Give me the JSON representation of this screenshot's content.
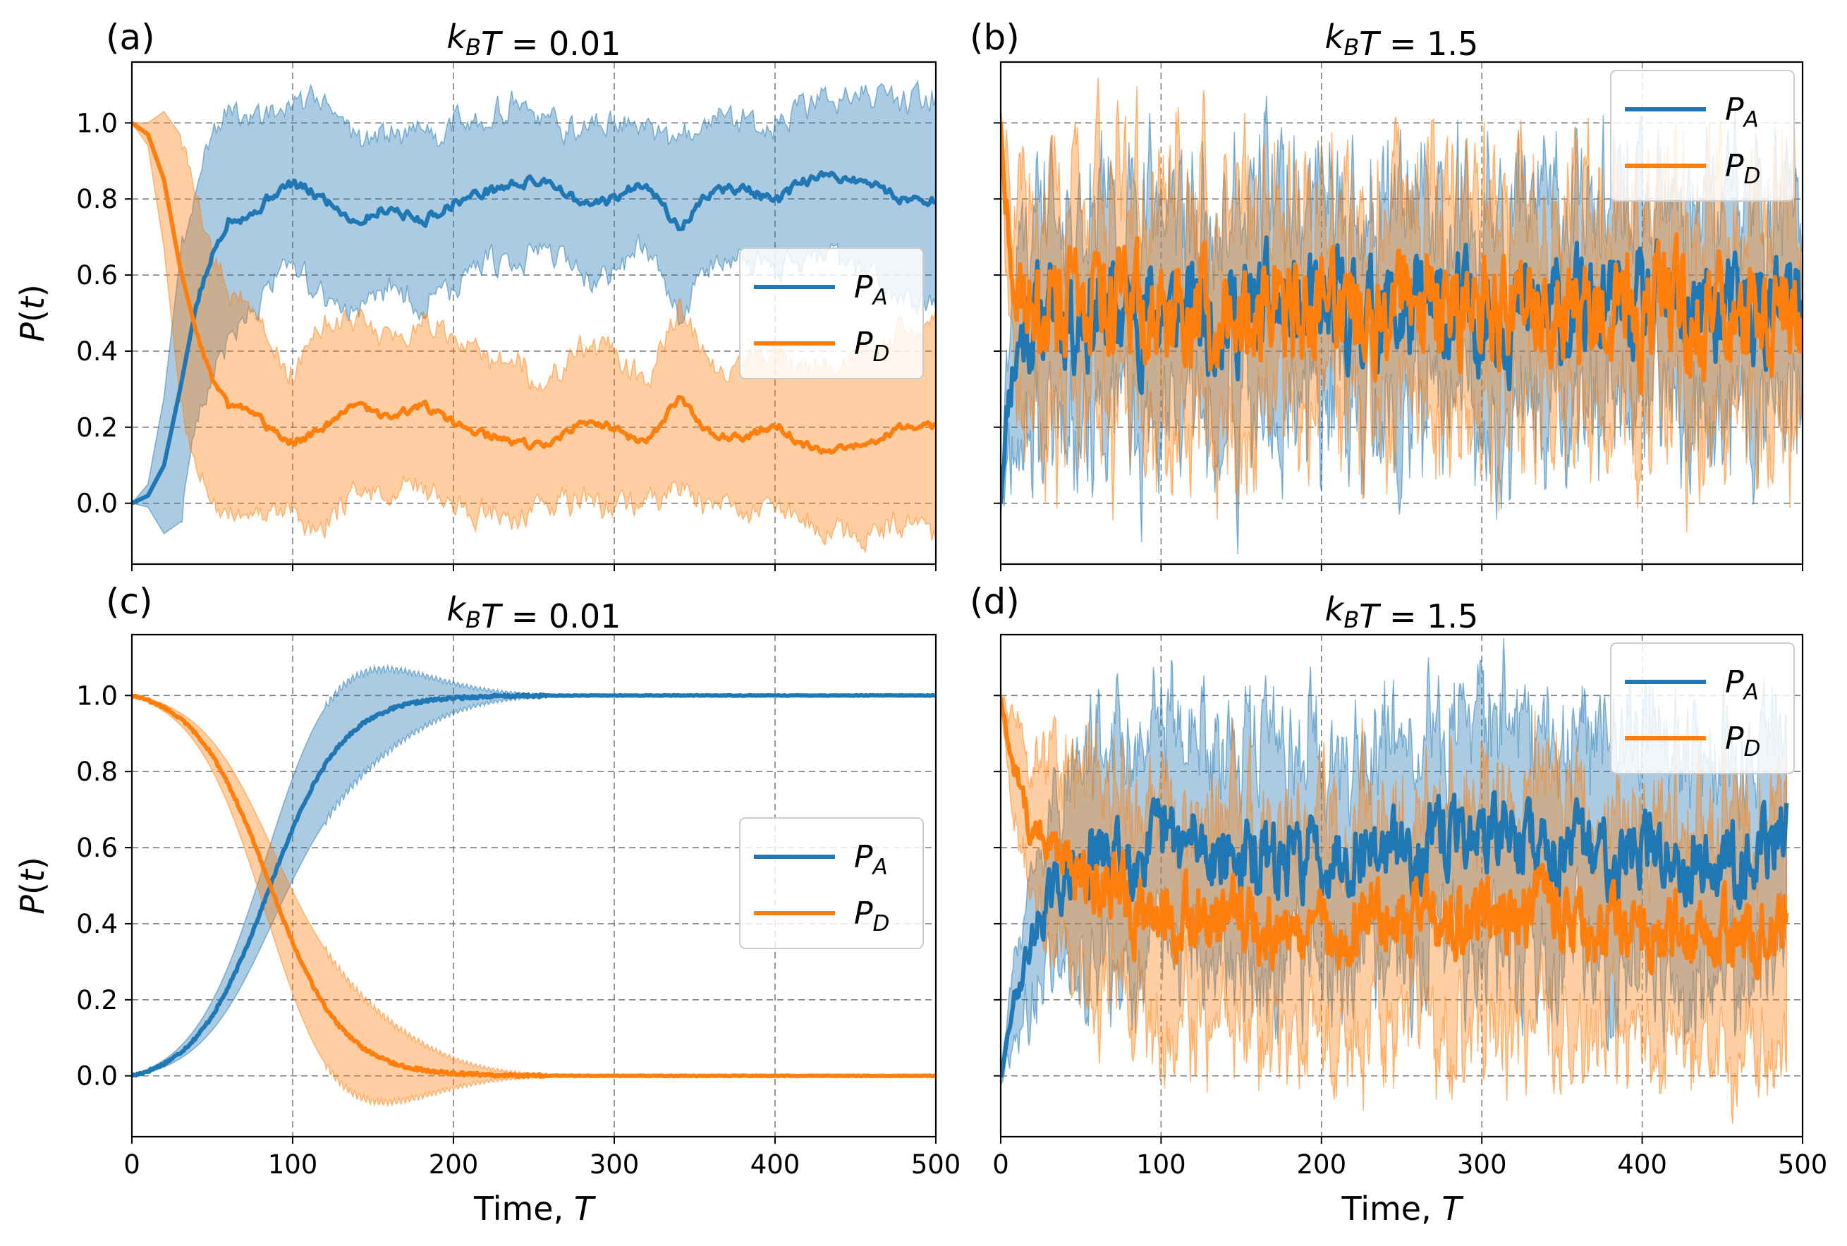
{
  "chart_data": [
    {
      "panel": "(a)",
      "type": "line",
      "title_var": "k",
      "title_sub": "B",
      "title_rest": "T = 0.01",
      "ylabel_main": "P(t)",
      "xlabel": "",
      "xlim": [
        0,
        500
      ],
      "ylim": [
        -0.16,
        1.16
      ],
      "yticks": [
        "0.0",
        "0.2",
        "0.4",
        "0.6",
        "0.8",
        "1.0"
      ],
      "xticks": [],
      "legend": "center-right",
      "series": [
        {
          "name": "P",
          "sub": "A",
          "color": "#1f77b4",
          "x": [
            0,
            10,
            20,
            30,
            40,
            50,
            60,
            75,
            90,
            100,
            120,
            140,
            160,
            180,
            200,
            220,
            240,
            260,
            280,
            300,
            320,
            340,
            360,
            380,
            400,
            420,
            440,
            460,
            480,
            500
          ],
          "values": [
            0.0,
            0.02,
            0.1,
            0.3,
            0.52,
            0.65,
            0.75,
            0.76,
            0.82,
            0.84,
            0.8,
            0.74,
            0.78,
            0.74,
            0.79,
            0.82,
            0.84,
            0.85,
            0.78,
            0.8,
            0.85,
            0.72,
            0.82,
            0.83,
            0.79,
            0.85,
            0.86,
            0.84,
            0.8,
            0.8
          ],
          "band": [
            0.0,
            0.03,
            0.18,
            0.35,
            0.32,
            0.33,
            0.3,
            0.25,
            0.2,
            0.18,
            0.27,
            0.22,
            0.2,
            0.22,
            0.22,
            0.2,
            0.2,
            0.16,
            0.2,
            0.2,
            0.16,
            0.24,
            0.2,
            0.18,
            0.2,
            0.2,
            0.22,
            0.24,
            0.26,
            0.28
          ]
        },
        {
          "name": "P",
          "sub": "D",
          "color": "#ff7f0e",
          "x": [
            0,
            10,
            20,
            30,
            40,
            50,
            60,
            75,
            90,
            100,
            120,
            140,
            160,
            180,
            200,
            220,
            240,
            260,
            280,
            300,
            320,
            340,
            360,
            380,
            400,
            420,
            440,
            460,
            480,
            500
          ],
          "values": [
            1.0,
            0.97,
            0.85,
            0.62,
            0.45,
            0.33,
            0.25,
            0.24,
            0.18,
            0.16,
            0.2,
            0.26,
            0.22,
            0.26,
            0.21,
            0.18,
            0.16,
            0.15,
            0.22,
            0.2,
            0.15,
            0.28,
            0.18,
            0.17,
            0.21,
            0.15,
            0.14,
            0.16,
            0.2,
            0.2
          ]
        },
        {
          "name": "band-D",
          "color": "#ff7f0e",
          "band": [
            0.0,
            0.03,
            0.18,
            0.35,
            0.32,
            0.33,
            0.3,
            0.25,
            0.2,
            0.18,
            0.27,
            0.22,
            0.2,
            0.22,
            0.22,
            0.2,
            0.2,
            0.16,
            0.2,
            0.2,
            0.16,
            0.24,
            0.2,
            0.18,
            0.2,
            0.2,
            0.22,
            0.24,
            0.26,
            0.28
          ]
        }
      ]
    },
    {
      "panel": "(b)",
      "type": "line",
      "title_var": "k",
      "title_sub": "B",
      "title_rest": "T = 1.5",
      "ylabel_main": "",
      "xlabel": "",
      "xlim": [
        0,
        500
      ],
      "ylim": [
        -0.16,
        1.16
      ],
      "yticks": [],
      "xticks": [],
      "legend": "top-right",
      "noise": {
        "tail_x": 500,
        "mean": 0.5,
        "line_amp": 0.07,
        "band_half": 0.28,
        "band_amp": 0.07,
        "seed": 11
      },
      "series": [
        {
          "name": "P",
          "sub": "A",
          "color": "#1f77b4",
          "start": 0.0,
          "relax": 6
        },
        {
          "name": "P",
          "sub": "D",
          "color": "#ff7f0e",
          "start": 1.0,
          "relax": 6
        }
      ]
    },
    {
      "panel": "(c)",
      "type": "line",
      "title_var": "k",
      "title_sub": "B",
      "title_rest": "T = 0.01",
      "ylabel_main": "P(t)",
      "xlabel_main": "Time, ",
      "xlabel_var": "T",
      "xlim": [
        0,
        500
      ],
      "ylim": [
        -0.16,
        1.16
      ],
      "yticks": [
        "0.0",
        "0.2",
        "0.4",
        "0.6",
        "0.8",
        "1.0"
      ],
      "xticks": [
        "0",
        "100",
        "200",
        "300",
        "400",
        "500"
      ],
      "legend": "center-right",
      "sigmoid": {
        "center": 85,
        "width": 23
      },
      "band_max": 0.15,
      "band_center": 120,
      "band_width": 60,
      "series": [
        {
          "name": "P",
          "sub": "A",
          "color": "#1f77b4",
          "rising": true
        },
        {
          "name": "P",
          "sub": "D",
          "color": "#ff7f0e",
          "rising": false
        }
      ]
    },
    {
      "panel": "(d)",
      "type": "line",
      "title_var": "k",
      "title_sub": "B",
      "title_rest": "T = 1.5",
      "ylabel_main": "",
      "xlabel_main": "Time, ",
      "xlabel_var": "T",
      "xlim": [
        0,
        500
      ],
      "ylim": [
        -0.16,
        1.16
      ],
      "yticks": [],
      "xticks": [
        "0",
        "100",
        "200",
        "300",
        "400",
        "500"
      ],
      "legend": "top-right",
      "noise": {
        "tail_x": 490,
        "mean_a": 0.6,
        "mean_d": 0.4,
        "line_amp": 0.05,
        "band_half": 0.3,
        "band_amp": 0.06,
        "seed": 29
      },
      "series": [
        {
          "name": "P",
          "sub": "A",
          "color": "#1f77b4",
          "start": 0.0,
          "relax": 25
        },
        {
          "name": "P",
          "sub": "D",
          "color": "#ff7f0e",
          "start": 1.0,
          "relax": 25
        }
      ]
    }
  ]
}
